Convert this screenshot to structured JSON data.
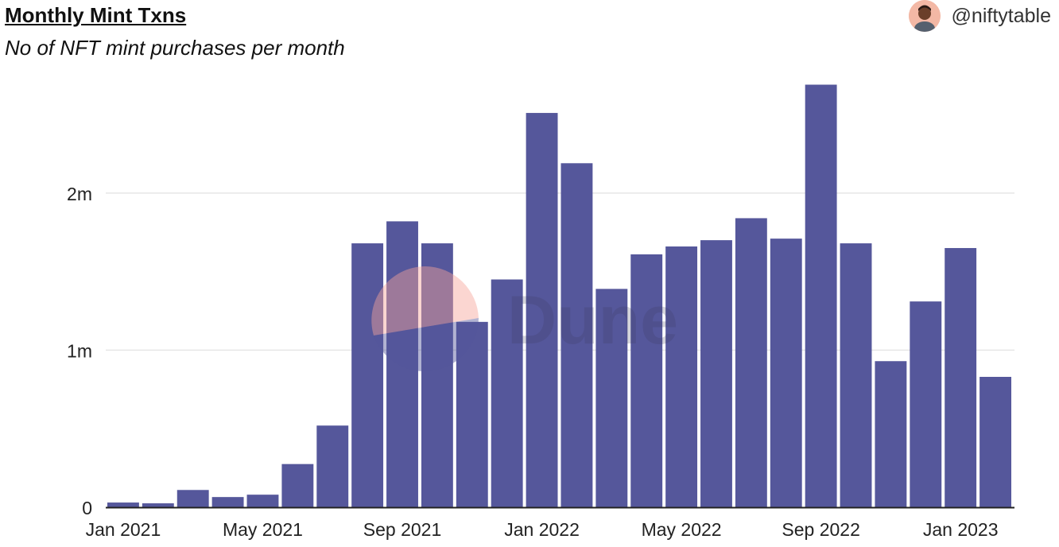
{
  "header": {
    "title": "Monthly Mint Txns",
    "subtitle": "No of NFT mint purchases per month",
    "author": "@niftytable"
  },
  "watermark": {
    "text": "Dune"
  },
  "colors": {
    "bar": "#55579b",
    "grid": "#e6e6e6",
    "axis": "#222222"
  },
  "chart_data": {
    "type": "bar",
    "title": "Monthly Mint Txns",
    "subtitle": "No of NFT mint purchases per month",
    "xlabel": "",
    "ylabel": "",
    "ylim": [
      0,
      2.9
    ],
    "unit": "millions",
    "yticks": [
      {
        "value": 0,
        "label": "0"
      },
      {
        "value": 1,
        "label": "1m"
      },
      {
        "value": 2,
        "label": "2m"
      }
    ],
    "categories": [
      "Jan 2021",
      "Feb 2021",
      "Mar 2021",
      "Apr 2021",
      "May 2021",
      "Jun 2021",
      "Jul 2021",
      "Aug 2021",
      "Sep 2021",
      "Oct 2021",
      "Nov 2021",
      "Dec 2021",
      "Jan 2022",
      "Feb 2022",
      "Mar 2022",
      "Apr 2022",
      "May 2022",
      "Jun 2022",
      "Jul 2022",
      "Aug 2022",
      "Sep 2022",
      "Oct 2022",
      "Nov 2022",
      "Dec 2022",
      "Jan 2023",
      "Feb 2023"
    ],
    "xtick_labels": [
      {
        "index": 0,
        "label": "Jan 2021"
      },
      {
        "index": 4,
        "label": "May 2021"
      },
      {
        "index": 8,
        "label": "Sep 2021"
      },
      {
        "index": 12,
        "label": "Jan 2022"
      },
      {
        "index": 16,
        "label": "May 2022"
      },
      {
        "index": 20,
        "label": "Sep 2022"
      },
      {
        "index": 24,
        "label": "Jan 2023"
      }
    ],
    "values": [
      0.03,
      0.025,
      0.11,
      0.065,
      0.08,
      0.275,
      0.52,
      1.68,
      1.82,
      1.68,
      1.18,
      1.45,
      2.51,
      2.19,
      1.39,
      1.61,
      1.66,
      1.7,
      1.84,
      1.71,
      2.69,
      1.68,
      0.93,
      1.31,
      1.65,
      0.83
    ]
  }
}
